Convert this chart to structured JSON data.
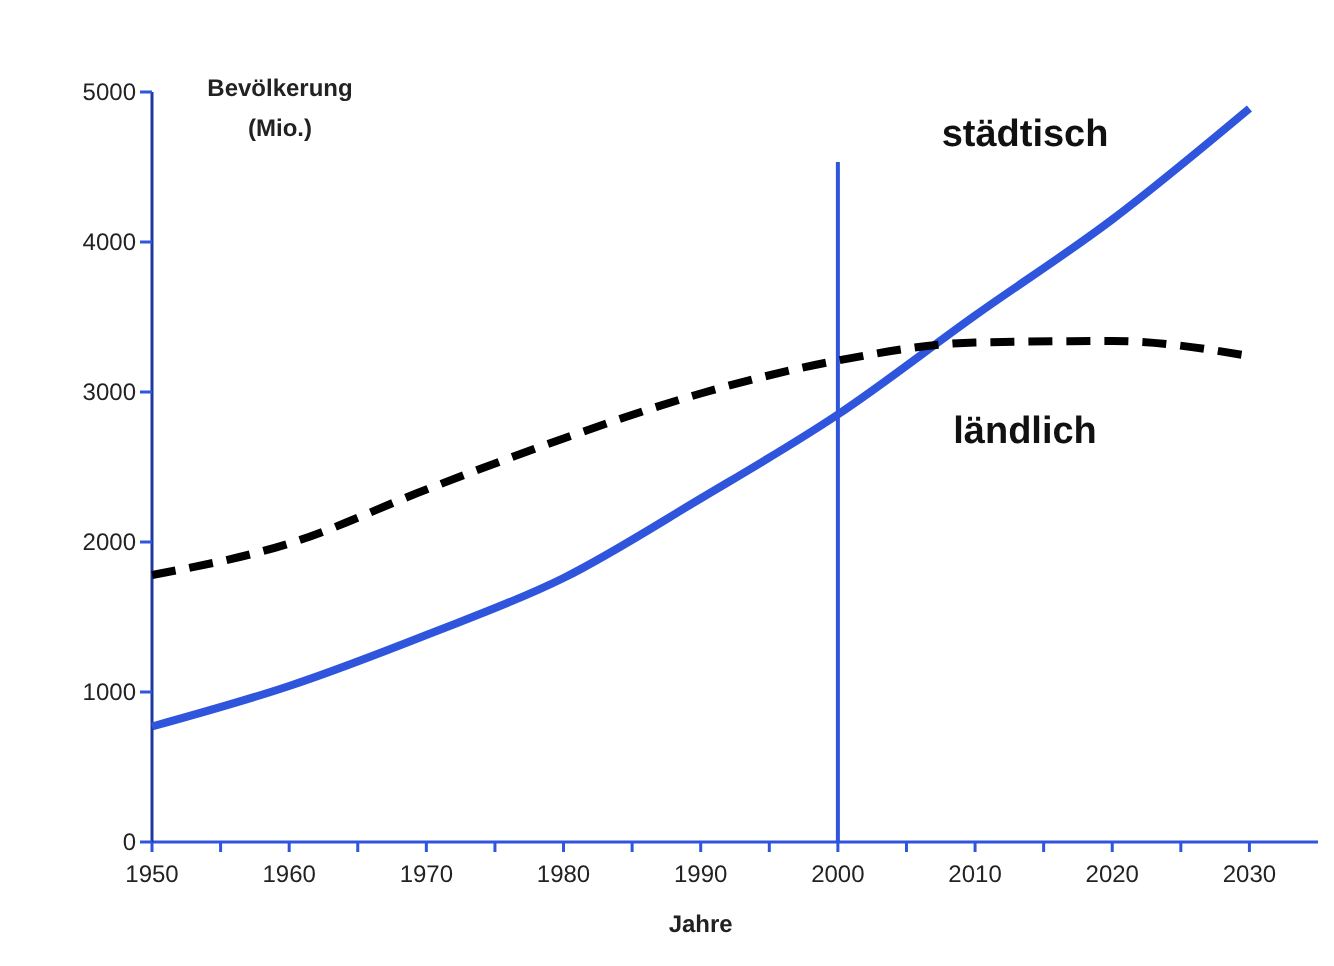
{
  "chart_data": {
    "type": "line",
    "xlabel": "Jahre",
    "ylabel": "Bevölkerung\n(Mio.)",
    "x": [
      1950,
      1960,
      1970,
      1980,
      1990,
      2000,
      2010,
      2020,
      2030
    ],
    "series": [
      {
        "name": "städtisch",
        "color": "#2f55dd",
        "line_style": "solid",
        "values": [
          770,
          1040,
          1380,
          1760,
          2290,
          2850,
          3510,
          4150,
          4890
        ]
      },
      {
        "name": "ländlich",
        "color": "#000000",
        "line_style": "dashed",
        "values": [
          1780,
          1990,
          2350,
          2690,
          2990,
          3210,
          3330,
          3340,
          3240
        ]
      }
    ],
    "xlim": [
      1950,
      2035
    ],
    "ylim": [
      0,
      5000
    ],
    "xticks": [
      1950,
      {
        "value": 1955,
        "label": null
      },
      1960,
      {
        "value": 1965,
        "label": null
      },
      1970,
      {
        "value": 1975,
        "label": null
      },
      1980,
      {
        "value": 1985,
        "label": null
      },
      1990,
      {
        "value": 1995,
        "label": null
      },
      2000,
      {
        "value": 2005,
        "label": null
      },
      2010,
      {
        "value": 2015,
        "label": null
      },
      2020,
      {
        "value": 2025,
        "label": null
      },
      2030
    ],
    "yticks": [
      0,
      1000,
      2000,
      3000,
      4000,
      5000
    ],
    "ref_lines": [
      {
        "axis": "x",
        "value": 2000,
        "color": "#2f55dd"
      }
    ],
    "grid": false,
    "legend": false,
    "marker": "none"
  }
}
